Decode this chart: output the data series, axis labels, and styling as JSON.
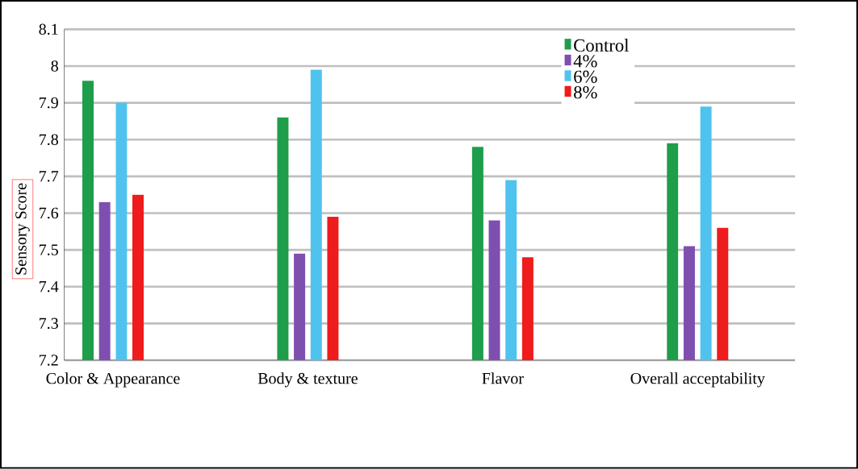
{
  "chart_data": {
    "type": "bar",
    "ylabel": "Sensory Score",
    "categories": [
      "Color & Appearance",
      "Body & texture",
      "Flavor",
      "Overall acceptability"
    ],
    "series": [
      {
        "name": "Control",
        "color": "#1e9e4a",
        "values": [
          7.96,
          7.86,
          7.78,
          7.79
        ]
      },
      {
        "name": "4%",
        "color": "#7f4fb0",
        "values": [
          7.63,
          7.49,
          7.58,
          7.51
        ]
      },
      {
        "name": "6%",
        "color": "#4fc3ee",
        "values": [
          7.9,
          7.99,
          7.69,
          7.89
        ]
      },
      {
        "name": "8%",
        "color": "#ee1c1c",
        "values": [
          7.65,
          7.59,
          7.48,
          7.56
        ]
      }
    ],
    "ylim": [
      7.2,
      8.1
    ],
    "yticks": [
      7.2,
      7.3,
      7.4,
      7.5,
      7.6,
      7.7,
      7.8,
      7.9,
      8,
      8.1
    ],
    "grid": "y",
    "legend": "top right"
  }
}
